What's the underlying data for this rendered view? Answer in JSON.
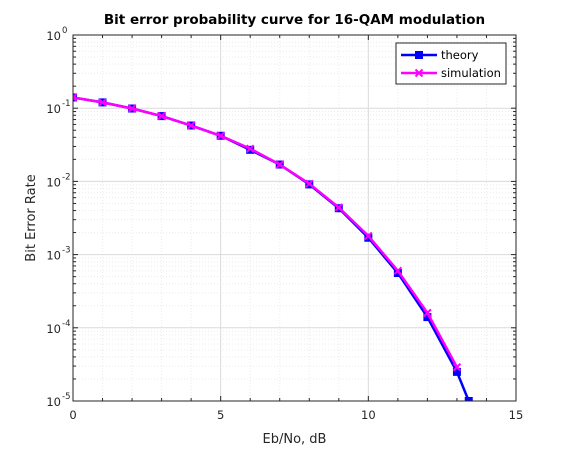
{
  "chart_data": {
    "type": "line",
    "title": "Bit error probability curve for 16-QAM modulation",
    "xlabel": "Eb/No, dB",
    "ylabel": "Bit Error Rate",
    "xlim": [
      0,
      15
    ],
    "ylim": [
      1e-05,
      1
    ],
    "yscale": "log",
    "grid": true,
    "minor_grid": true,
    "legend_position": "top-right",
    "x_ticks": [
      "0",
      "5",
      "10",
      "15"
    ],
    "y_ticks": [
      {
        "base": "10",
        "exp": "0"
      },
      {
        "base": "10",
        "exp": "-1"
      },
      {
        "base": "10",
        "exp": "-2"
      },
      {
        "base": "10",
        "exp": "-3"
      },
      {
        "base": "10",
        "exp": "-4"
      },
      {
        "base": "10",
        "exp": "-5"
      }
    ],
    "series": [
      {
        "name": "theory",
        "color": "#0000ff",
        "marker": "square",
        "x": [
          0,
          1,
          2,
          3,
          4,
          5,
          6,
          7,
          8,
          9,
          10,
          11,
          12,
          13,
          13.4
        ],
        "y": [
          0.14,
          0.12,
          0.099,
          0.078,
          0.058,
          0.042,
          0.027,
          0.017,
          0.0091,
          0.0043,
          0.0017,
          0.00056,
          0.00014,
          2.5e-05,
          1e-05
        ]
      },
      {
        "name": "simulation",
        "color": "#ff00ff",
        "marker": "x",
        "x": [
          0,
          1,
          2,
          3,
          4,
          5,
          6,
          7,
          8,
          9,
          10,
          11,
          12,
          13
        ],
        "y": [
          0.14,
          0.12,
          0.099,
          0.078,
          0.058,
          0.042,
          0.028,
          0.017,
          0.0093,
          0.0044,
          0.0018,
          0.0006,
          0.00016,
          2.9e-05
        ]
      }
    ]
  }
}
